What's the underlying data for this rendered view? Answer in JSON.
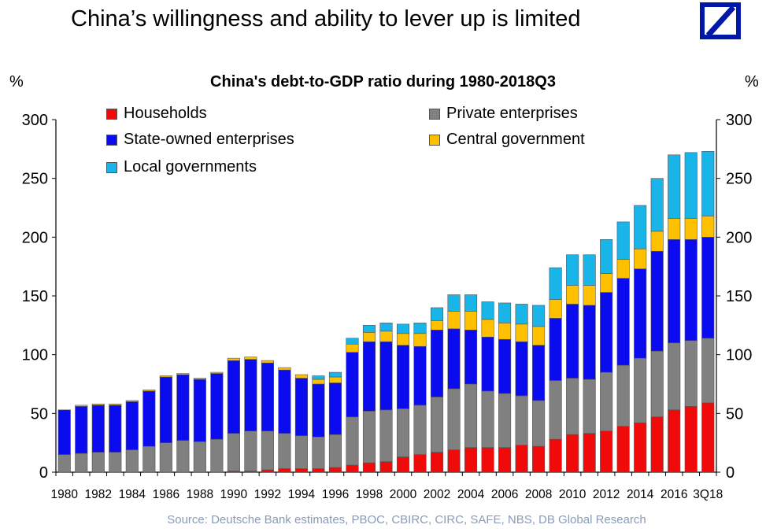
{
  "header": {
    "title": "China’s willingness and ability to lever up is limited"
  },
  "chart_data": {
    "type": "bar",
    "stacked": true,
    "title": "China's debt-to-GDP ratio during 1980-2018Q3",
    "ylabel_left": "%",
    "ylabel_right": "%",
    "ylim": [
      0,
      300
    ],
    "yticks": [
      0,
      50,
      100,
      150,
      200,
      250,
      300
    ],
    "categories": [
      "1980",
      "1981",
      "1982",
      "1983",
      "1984",
      "1985",
      "1986",
      "1987",
      "1988",
      "1989",
      "1990",
      "1991",
      "1992",
      "1993",
      "1994",
      "1995",
      "1996",
      "1997",
      "1998",
      "1999",
      "2000",
      "2001",
      "2002",
      "2003",
      "2004",
      "2005",
      "2006",
      "2007",
      "2008",
      "2009",
      "2010",
      "2011",
      "2012",
      "2013",
      "2014",
      "2015",
      "2016",
      "2017",
      "3Q18"
    ],
    "xtick_labels": [
      "1980",
      "1982",
      "1984",
      "1986",
      "1988",
      "1990",
      "1992",
      "1994",
      "1996",
      "1998",
      "2000",
      "2002",
      "2004",
      "2006",
      "2008",
      "2010",
      "2012",
      "2014",
      "2016",
      "3Q18"
    ],
    "series": [
      {
        "name": "Households",
        "color": "#f00a0a",
        "values": [
          0,
          0,
          0,
          0,
          0,
          0,
          0,
          0,
          0,
          0,
          1,
          1,
          2,
          3,
          3,
          3,
          4,
          6,
          8,
          9,
          13,
          15,
          17,
          19,
          21,
          21,
          21,
          23,
          22,
          28,
          32,
          33,
          35,
          39,
          42,
          47,
          53,
          56,
          59
        ]
      },
      {
        "name": "Private enterprises",
        "color": "#808080",
        "values": [
          15,
          16,
          17,
          17,
          19,
          22,
          25,
          27,
          26,
          28,
          32,
          34,
          33,
          30,
          28,
          27,
          28,
          41,
          44,
          44,
          41,
          42,
          47,
          52,
          54,
          48,
          46,
          42,
          39,
          50,
          48,
          46,
          50,
          52,
          55,
          56,
          57,
          56,
          55
        ]
      },
      {
        "name": "State-owned enterprises",
        "color": "#0b0bf0",
        "values": [
          38,
          40,
          40,
          40,
          41,
          47,
          56,
          56,
          53,
          56,
          62,
          61,
          58,
          54,
          49,
          45,
          44,
          55,
          59,
          58,
          54,
          50,
          57,
          51,
          46,
          46,
          46,
          46,
          47,
          53,
          63,
          63,
          68,
          74,
          76,
          85,
          88,
          86,
          86
        ]
      },
      {
        "name": "Central government",
        "color": "#ffc000",
        "values": [
          0,
          1,
          1,
          1,
          1,
          1,
          1,
          1,
          1,
          1,
          2,
          2,
          2,
          2,
          3,
          4,
          5,
          7,
          8,
          9,
          10,
          11,
          8,
          15,
          16,
          15,
          14,
          15,
          16,
          16,
          16,
          17,
          16,
          16,
          17,
          17,
          18,
          18,
          18
        ]
      },
      {
        "name": "Local governments",
        "color": "#19b5e8",
        "values": [
          0,
          0,
          0,
          0,
          0,
          0,
          0,
          0,
          0,
          0,
          0,
          0,
          0,
          0,
          0,
          3,
          4,
          5,
          6,
          7,
          8,
          9,
          11,
          14,
          14,
          15,
          17,
          17,
          18,
          27,
          26,
          26,
          29,
          32,
          37,
          45,
          54,
          56,
          55
        ]
      }
    ],
    "legend": [
      "Households",
      "Private enterprises",
      "State-owned enterprises",
      "Central government",
      "Local governments"
    ]
  },
  "source": "Source: Deutsche Bank estimates, PBOC, CBIRC, CIRC, SAFE, NBS, DB Global Research"
}
